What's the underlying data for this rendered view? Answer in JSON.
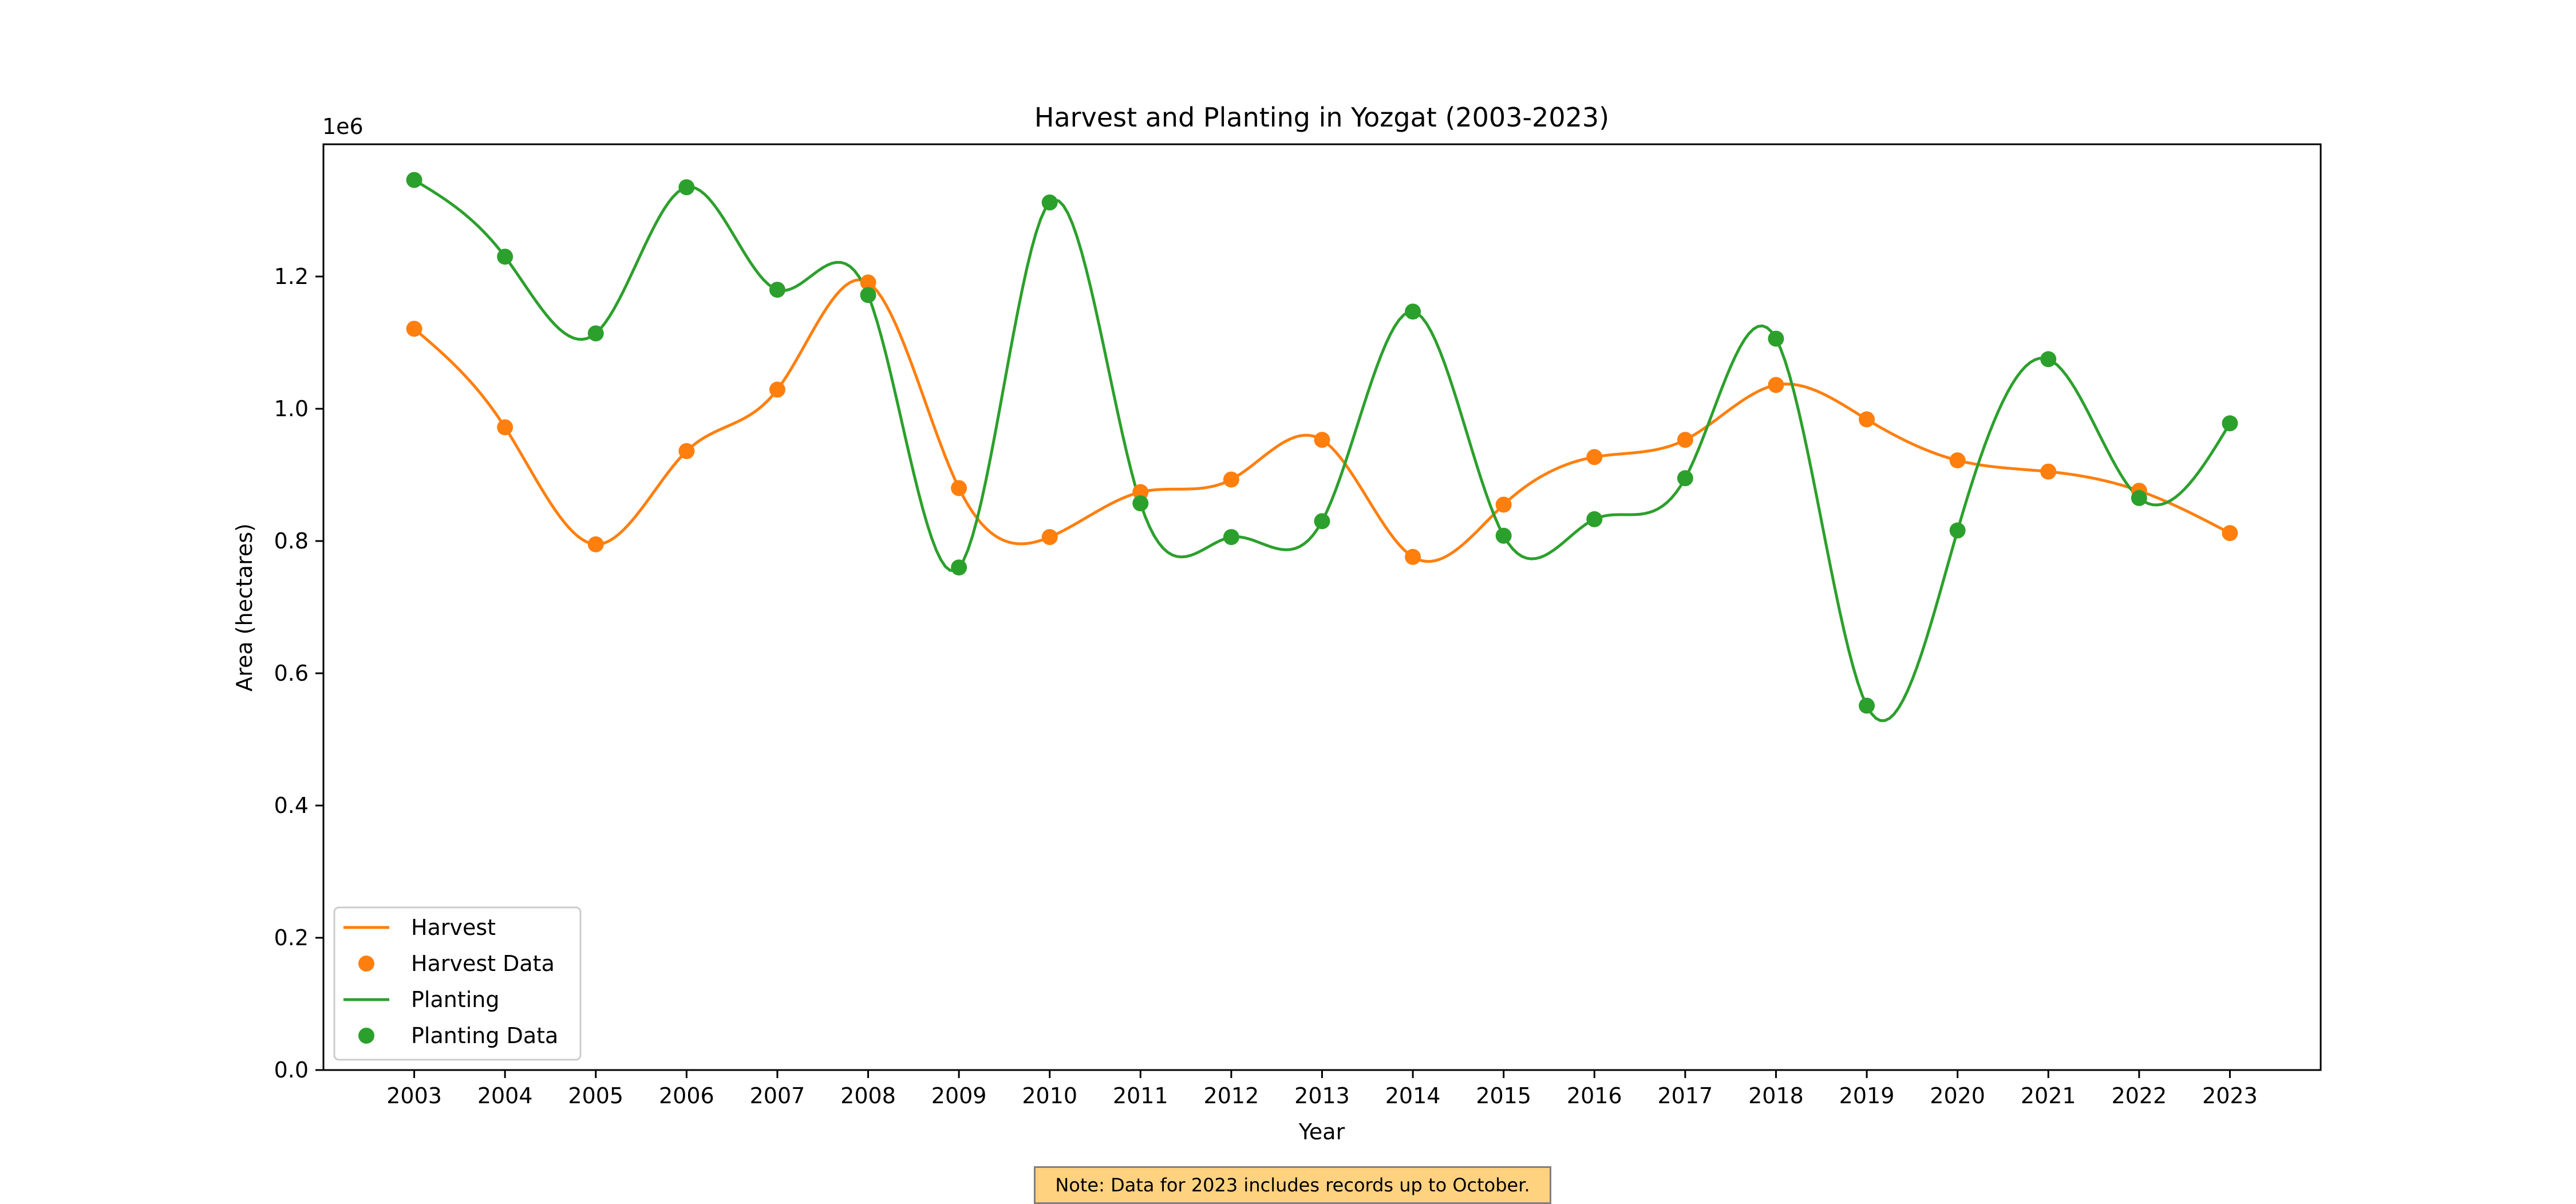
{
  "chart_data": {
    "type": "line",
    "title": "Harvest and Planting in Yozgat (2003-2023)",
    "xlabel": "Year",
    "ylabel": "Area (hectares)",
    "y_offset_label": "1e6",
    "x": [
      2003,
      2004,
      2005,
      2006,
      2007,
      2008,
      2009,
      2010,
      2011,
      2012,
      2013,
      2014,
      2015,
      2016,
      2017,
      2018,
      2019,
      2020,
      2021,
      2022,
      2023
    ],
    "x_tick_labels": [
      "2003",
      "2004",
      "2005",
      "2006",
      "2007",
      "2008",
      "2009",
      "2010",
      "2011",
      "2012",
      "2013",
      "2014",
      "2015",
      "2016",
      "2017",
      "2018",
      "2019",
      "2020",
      "2021",
      "2022",
      "2023"
    ],
    "y_tick_labels": [
      "0.0",
      "0.2",
      "0.4",
      "0.6",
      "0.8",
      "1.0",
      "1.2"
    ],
    "y_ticks": [
      0,
      200000,
      400000,
      600000,
      800000,
      1000000,
      1200000
    ],
    "ylim": [
      0,
      1400000
    ],
    "xlim": [
      2002,
      2024
    ],
    "grid": false,
    "legend_position": "lower-left",
    "legend": [
      "Harvest",
      "Harvest Data",
      "Planting",
      "Planting Data"
    ],
    "series": [
      {
        "name": "Harvest",
        "color": "#ff7f0e",
        "values": [
          1121000,
          972000,
          795000,
          936000,
          1029000,
          1191000,
          880000,
          806000,
          874000,
          893000,
          953000,
          776000,
          855000,
          927000,
          953000,
          1036000,
          984000,
          922000,
          905000,
          876000,
          812000
        ]
      },
      {
        "name": "Planting",
        "color": "#2ca02c",
        "values": [
          1346000,
          1230000,
          1114000,
          1335000,
          1180000,
          1172000,
          760000,
          1312000,
          857000,
          806000,
          830000,
          1147000,
          808000,
          833000,
          895000,
          1106000,
          551000,
          816000,
          1075000,
          865000,
          978000
        ]
      }
    ],
    "note": "Note: Data for 2023 includes records up to October."
  }
}
